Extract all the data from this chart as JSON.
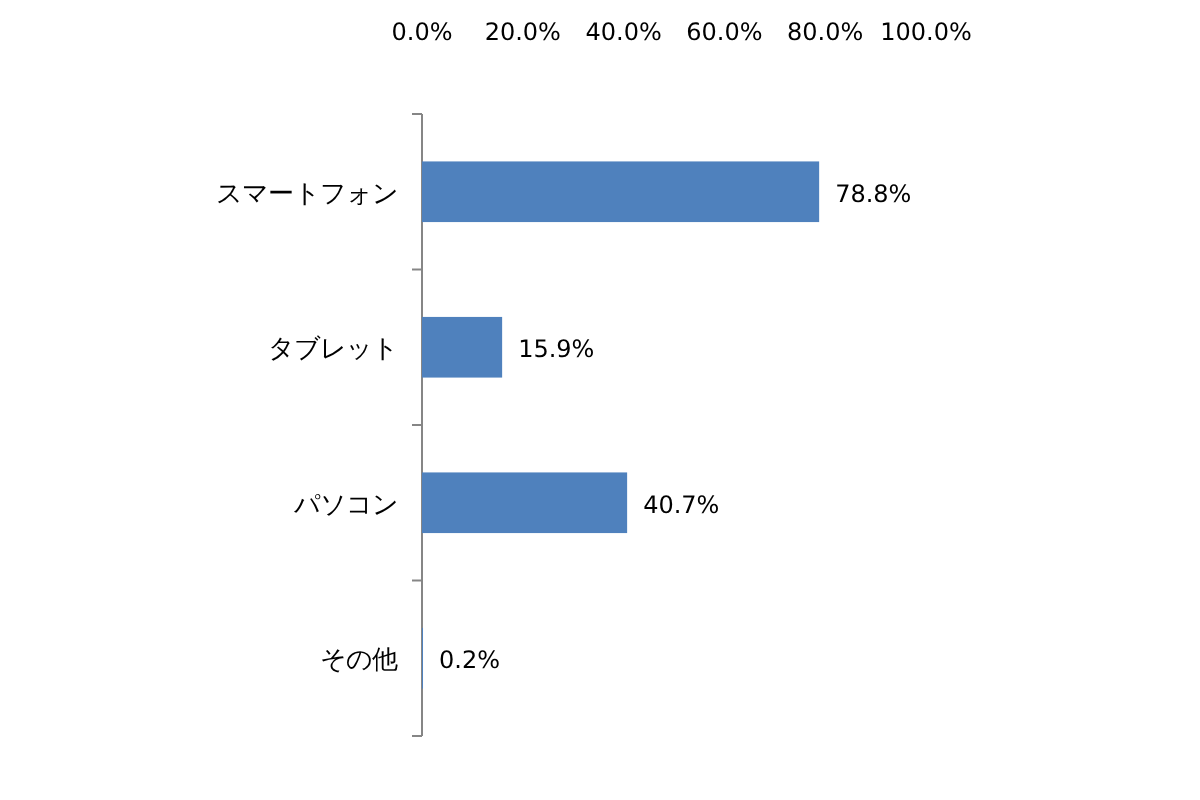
{
  "chart_data": {
    "type": "bar",
    "orientation": "horizontal",
    "categories": [
      "スマートフォン",
      "タブレット",
      "パソコン",
      "その他"
    ],
    "values": [
      78.8,
      15.9,
      40.7,
      0.2
    ],
    "value_labels": [
      "78.8%",
      "15.9%",
      "40.7%",
      "0.2%"
    ],
    "color": "#4f81bd",
    "xlim": [
      0,
      100
    ],
    "xticks": [
      {
        "value": 0,
        "label": "0.0%"
      },
      {
        "value": 20,
        "label": "20.0%"
      },
      {
        "value": 40,
        "label": "40.0%"
      },
      {
        "value": 60,
        "label": "60.0%"
      },
      {
        "value": 80,
        "label": "80.0%"
      },
      {
        "value": 100,
        "label": "100.0%"
      }
    ]
  }
}
